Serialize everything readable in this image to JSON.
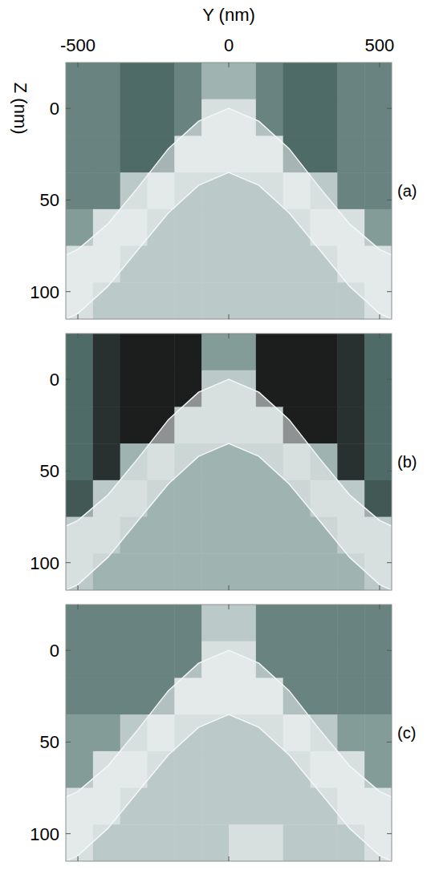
{
  "chart_data": [
    {
      "type": "heatmap",
      "label": "(a)",
      "x_label": "Y (nm)",
      "y_label": "Z (nm)",
      "xlim": [
        -540,
        540
      ],
      "ylim": [
        -25,
        115
      ],
      "xticks": [
        -500,
        0,
        500
      ],
      "yticks": [
        0,
        50,
        100
      ],
      "tick_labels": true,
      "value_range": [
        0,
        10
      ],
      "x": [
        -495,
        -405,
        -315,
        -225,
        -135,
        -45,
        45,
        135,
        225,
        315,
        405,
        495
      ],
      "z": [
        -15,
        5,
        25,
        45,
        65,
        85,
        105
      ],
      "cells": [
        [
          5,
          5,
          4,
          4,
          5,
          7,
          7,
          5,
          4,
          4,
          5,
          5
        ],
        [
          5,
          5,
          4,
          4,
          5,
          9,
          9,
          5,
          4,
          4,
          5,
          5
        ],
        [
          5,
          5,
          4,
          4,
          9,
          9,
          9,
          9,
          4,
          4,
          5,
          5
        ],
        [
          5,
          5,
          8,
          9,
          8,
          8,
          8,
          8,
          9,
          8,
          5,
          5
        ],
        [
          6,
          9,
          9,
          8,
          8,
          8,
          8,
          8,
          8,
          9,
          9,
          6
        ],
        [
          9,
          9,
          8,
          8,
          8,
          8,
          8,
          8,
          8,
          8,
          9,
          9
        ],
        [
          9,
          8,
          8,
          8,
          8,
          8,
          8,
          8,
          8,
          8,
          8,
          9
        ]
      ],
      "band": {
        "x": [
          -540,
          -500,
          -400,
          -300,
          -200,
          -100,
          0,
          100,
          200,
          300,
          400,
          500,
          540
        ],
        "upper": [
          80,
          77,
          63,
          43,
          22,
          7,
          0,
          7,
          22,
          43,
          63,
          77,
          80
        ],
        "lower": [
          115,
          112,
          97,
          77,
          57,
          42,
          35,
          42,
          57,
          77,
          97,
          112,
          115
        ]
      }
    },
    {
      "type": "heatmap",
      "label": "(b)",
      "xlim": [
        -540,
        540
      ],
      "ylim": [
        -25,
        115
      ],
      "xticks": [
        -500,
        0,
        500
      ],
      "yticks": [
        0,
        50,
        100
      ],
      "tick_labels": "y",
      "value_range": [
        0,
        10
      ],
      "x": [
        -495,
        -405,
        -315,
        -225,
        -135,
        -45,
        45,
        135,
        225,
        315,
        405,
        495
      ],
      "z": [
        -15,
        5,
        25,
        45,
        65,
        85,
        105
      ],
      "cells": [
        [
          4,
          1,
          0,
          0,
          0,
          6,
          6,
          0,
          0,
          0,
          1,
          4
        ],
        [
          4,
          1,
          0,
          0,
          0,
          8,
          8,
          0,
          0,
          0,
          1,
          4
        ],
        [
          4,
          1,
          0,
          0,
          8,
          8,
          8,
          8,
          0,
          0,
          1,
          4
        ],
        [
          4,
          1,
          7,
          8,
          7,
          7,
          7,
          7,
          8,
          7,
          1,
          4
        ],
        [
          3,
          8,
          8,
          7,
          7,
          7,
          7,
          7,
          7,
          8,
          8,
          3
        ],
        [
          8,
          8,
          7,
          7,
          7,
          7,
          7,
          7,
          7,
          7,
          8,
          8
        ],
        [
          8,
          7,
          7,
          7,
          7,
          7,
          7,
          7,
          7,
          7,
          7,
          8
        ]
      ],
      "band": {
        "x": [
          -540,
          -500,
          -400,
          -300,
          -200,
          -100,
          0,
          100,
          200,
          300,
          400,
          500,
          540
        ],
        "upper": [
          80,
          77,
          63,
          43,
          22,
          7,
          0,
          7,
          22,
          43,
          63,
          77,
          80
        ],
        "lower": [
          115,
          112,
          97,
          77,
          57,
          42,
          35,
          42,
          57,
          77,
          97,
          112,
          115
        ]
      }
    },
    {
      "type": "heatmap",
      "label": "(c)",
      "xlim": [
        -540,
        540
      ],
      "ylim": [
        -25,
        115
      ],
      "xticks": [
        -500,
        0,
        500
      ],
      "yticks": [
        0,
        50,
        100
      ],
      "tick_labels": "y",
      "value_range": [
        0,
        10
      ],
      "x": [
        -495,
        -405,
        -315,
        -225,
        -135,
        -45,
        45,
        135,
        225,
        315,
        405,
        495
      ],
      "z": [
        -15,
        5,
        25,
        45,
        65,
        85,
        105
      ],
      "cells": [
        [
          5,
          5,
          5,
          5,
          5,
          8,
          8,
          5,
          5,
          5,
          5,
          5
        ],
        [
          5,
          5,
          5,
          5,
          5,
          9,
          9,
          5,
          5,
          5,
          5,
          5
        ],
        [
          5,
          5,
          5,
          5,
          9,
          9,
          9,
          9,
          5,
          5,
          5,
          5
        ],
        [
          6,
          6,
          8,
          9,
          8,
          8,
          8,
          8,
          9,
          8,
          6,
          6
        ],
        [
          6,
          9,
          9,
          8,
          8,
          8,
          8,
          8,
          8,
          9,
          9,
          6
        ],
        [
          9,
          9,
          8,
          8,
          8,
          8,
          8,
          8,
          8,
          8,
          9,
          9
        ],
        [
          9,
          8,
          8,
          8,
          8,
          8,
          9,
          9,
          8,
          8,
          8,
          9
        ]
      ],
      "band": {
        "x": [
          -540,
          -500,
          -400,
          -300,
          -200,
          -100,
          0,
          100,
          200,
          300,
          400,
          500,
          540
        ],
        "upper": [
          80,
          77,
          63,
          43,
          22,
          7,
          0,
          7,
          22,
          43,
          63,
          77,
          80
        ],
        "lower": [
          115,
          112,
          97,
          77,
          57,
          42,
          35,
          42,
          57,
          77,
          97,
          112,
          115
        ]
      }
    }
  ]
}
